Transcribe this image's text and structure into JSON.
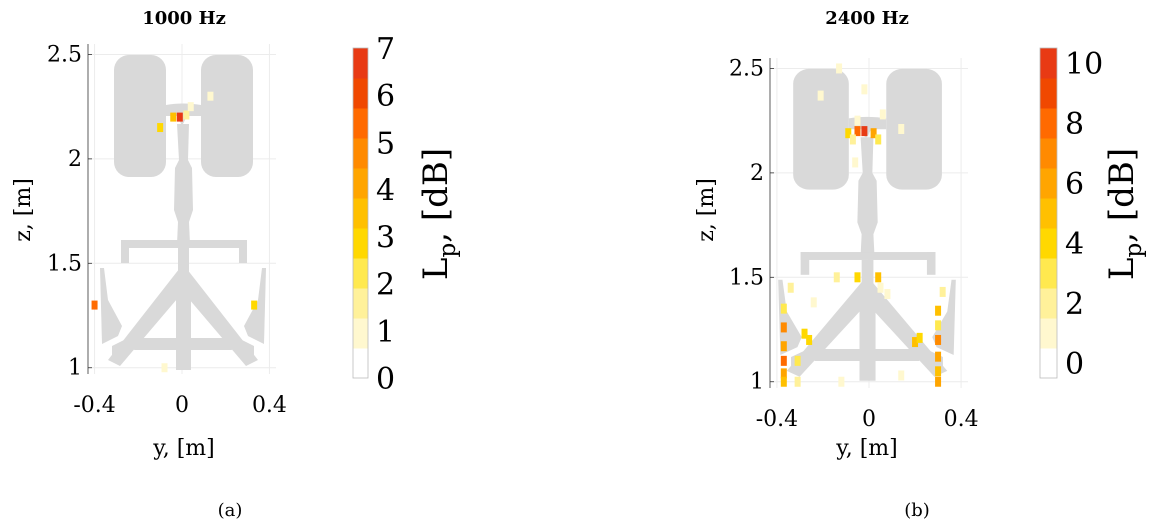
{
  "figure": {
    "panels": [
      {
        "caption": "(a)"
      },
      {
        "caption": "(b)"
      }
    ]
  },
  "colors": {
    "silhouette": "#d9d9d9",
    "scale": [
      "#ffffff",
      "#fff8cf",
      "#fff19a",
      "#ffe94f",
      "#ffd800",
      "#ffc000",
      "#ffa500",
      "#ff8a00",
      "#ff6a00",
      "#f04800",
      "#e83a14"
    ]
  },
  "chart_data": [
    {
      "type": "heatmap",
      "title": "1000 Hz",
      "xlabel": "y, [m]",
      "ylabel": "z, [m]",
      "xlim": [
        -0.43,
        0.43
      ],
      "ylim": [
        0.97,
        2.55
      ],
      "xticks": [
        "-0.4",
        "0",
        "0.4"
      ],
      "xtick_values": [
        -0.4,
        0,
        0.4
      ],
      "yticks": [
        "1",
        "1.5",
        "2",
        "2.5"
      ],
      "ytick_values": [
        1,
        1.5,
        2,
        2.5
      ],
      "grid": true,
      "colorbar": {
        "label": "L",
        "label_subscript": "p",
        "label_suffix": ", [dB]",
        "range": [
          0,
          7
        ],
        "ticks": [
          "0",
          "1",
          "2",
          "3",
          "4",
          "5",
          "6",
          "7"
        ],
        "tick_values": [
          0,
          1,
          2,
          3,
          4,
          5,
          6,
          7
        ]
      },
      "cells": [
        {
          "y": -0.01,
          "z": 2.2,
          "value": 6.8
        },
        {
          "y": -0.04,
          "z": 2.2,
          "value": 3.5
        },
        {
          "y": 0.02,
          "z": 2.21,
          "value": 1.5
        },
        {
          "y": -0.1,
          "z": 2.15,
          "value": 2.8
        },
        {
          "y": 0.04,
          "z": 2.25,
          "value": 1.0
        },
        {
          "y": 0.13,
          "z": 2.3,
          "value": 1.0
        },
        {
          "y": -0.4,
          "z": 1.3,
          "value": 5.5
        },
        {
          "y": 0.33,
          "z": 1.3,
          "value": 3.0
        },
        {
          "y": -0.08,
          "z": 1.0,
          "value": 1.0
        }
      ]
    },
    {
      "type": "heatmap",
      "title": "2400 Hz",
      "xlabel": "y, [m]",
      "ylabel": "z, [m]",
      "xlim": [
        -0.43,
        0.43
      ],
      "ylim": [
        0.97,
        2.55
      ],
      "xticks": [
        "-0.4",
        "0",
        "0.4"
      ],
      "xtick_values": [
        -0.4,
        0,
        0.4
      ],
      "yticks": [
        "1",
        "1.5",
        "2",
        "2.5"
      ],
      "ytick_values": [
        1,
        1.5,
        2,
        2.5
      ],
      "grid": true,
      "colorbar": {
        "label": "L",
        "label_subscript": "p",
        "label_suffix": ", [dB]",
        "range": [
          -0.5,
          10.5
        ],
        "ticks": [
          "0",
          "2",
          "4",
          "6",
          "8",
          "10"
        ],
        "tick_values": [
          0,
          2,
          4,
          6,
          8,
          10
        ]
      },
      "cells": [
        {
          "y": -0.02,
          "z": 2.2,
          "value": 10.0
        },
        {
          "y": -0.05,
          "z": 2.2,
          "value": 8.0
        },
        {
          "y": 0.02,
          "z": 2.19,
          "value": 6.0
        },
        {
          "y": -0.09,
          "z": 2.19,
          "value": 4.0
        },
        {
          "y": 0.04,
          "z": 2.16,
          "value": 3.0
        },
        {
          "y": -0.07,
          "z": 2.16,
          "value": 2.0
        },
        {
          "y": -0.05,
          "z": 2.25,
          "value": 1.0
        },
        {
          "y": 0.06,
          "z": 2.28,
          "value": 1.0
        },
        {
          "y": 0.14,
          "z": 2.21,
          "value": 1.0
        },
        {
          "y": -0.21,
          "z": 2.37,
          "value": 1.0
        },
        {
          "y": -0.13,
          "z": 2.5,
          "value": 1.0
        },
        {
          "y": -0.02,
          "z": 2.4,
          "value": 1.0
        },
        {
          "y": -0.06,
          "z": 2.05,
          "value": 1.0
        },
        {
          "y": -0.05,
          "z": 1.5,
          "value": 3.5
        },
        {
          "y": 0.04,
          "z": 1.5,
          "value": 5.5
        },
        {
          "y": -0.14,
          "z": 1.5,
          "value": 2.0
        },
        {
          "y": 0.08,
          "z": 1.42,
          "value": 1.0
        },
        {
          "y": -0.24,
          "z": 1.38,
          "value": 1.0
        },
        {
          "y": -0.28,
          "z": 1.23,
          "value": 4.0
        },
        {
          "y": -0.26,
          "z": 1.2,
          "value": 3.5
        },
        {
          "y": 0.2,
          "z": 1.19,
          "value": 5.0
        },
        {
          "y": 0.22,
          "z": 1.21,
          "value": 3.5
        },
        {
          "y": -0.34,
          "z": 1.45,
          "value": 2.0
        },
        {
          "y": 0.32,
          "z": 1.43,
          "value": 2.0
        },
        {
          "y": -0.37,
          "z": 1.26,
          "value": 7.5
        },
        {
          "y": -0.37,
          "z": 1.17,
          "value": 6.5
        },
        {
          "y": -0.37,
          "z": 1.1,
          "value": 8.0
        },
        {
          "y": -0.37,
          "z": 1.04,
          "value": 6.5
        },
        {
          "y": -0.37,
          "z": 1.35,
          "value": 3.0
        },
        {
          "y": -0.37,
          "z": 1.0,
          "value": 5.5
        },
        {
          "y": 0.3,
          "z": 1.34,
          "value": 4.5
        },
        {
          "y": 0.3,
          "z": 1.27,
          "value": 3.0
        },
        {
          "y": 0.3,
          "z": 1.2,
          "value": 7.0
        },
        {
          "y": 0.3,
          "z": 1.12,
          "value": 6.5
        },
        {
          "y": 0.3,
          "z": 1.05,
          "value": 5.5
        },
        {
          "y": 0.3,
          "z": 1.0,
          "value": 6.0
        },
        {
          "y": -0.31,
          "z": 1.1,
          "value": 2.5
        },
        {
          "y": -0.12,
          "z": 1.0,
          "value": 1.0
        },
        {
          "y": 0.14,
          "z": 1.03,
          "value": 1.0
        },
        {
          "y": 0.05,
          "z": 1.45,
          "value": 1.0
        },
        {
          "y": -0.31,
          "z": 1.0,
          "value": 1.5
        }
      ]
    }
  ]
}
